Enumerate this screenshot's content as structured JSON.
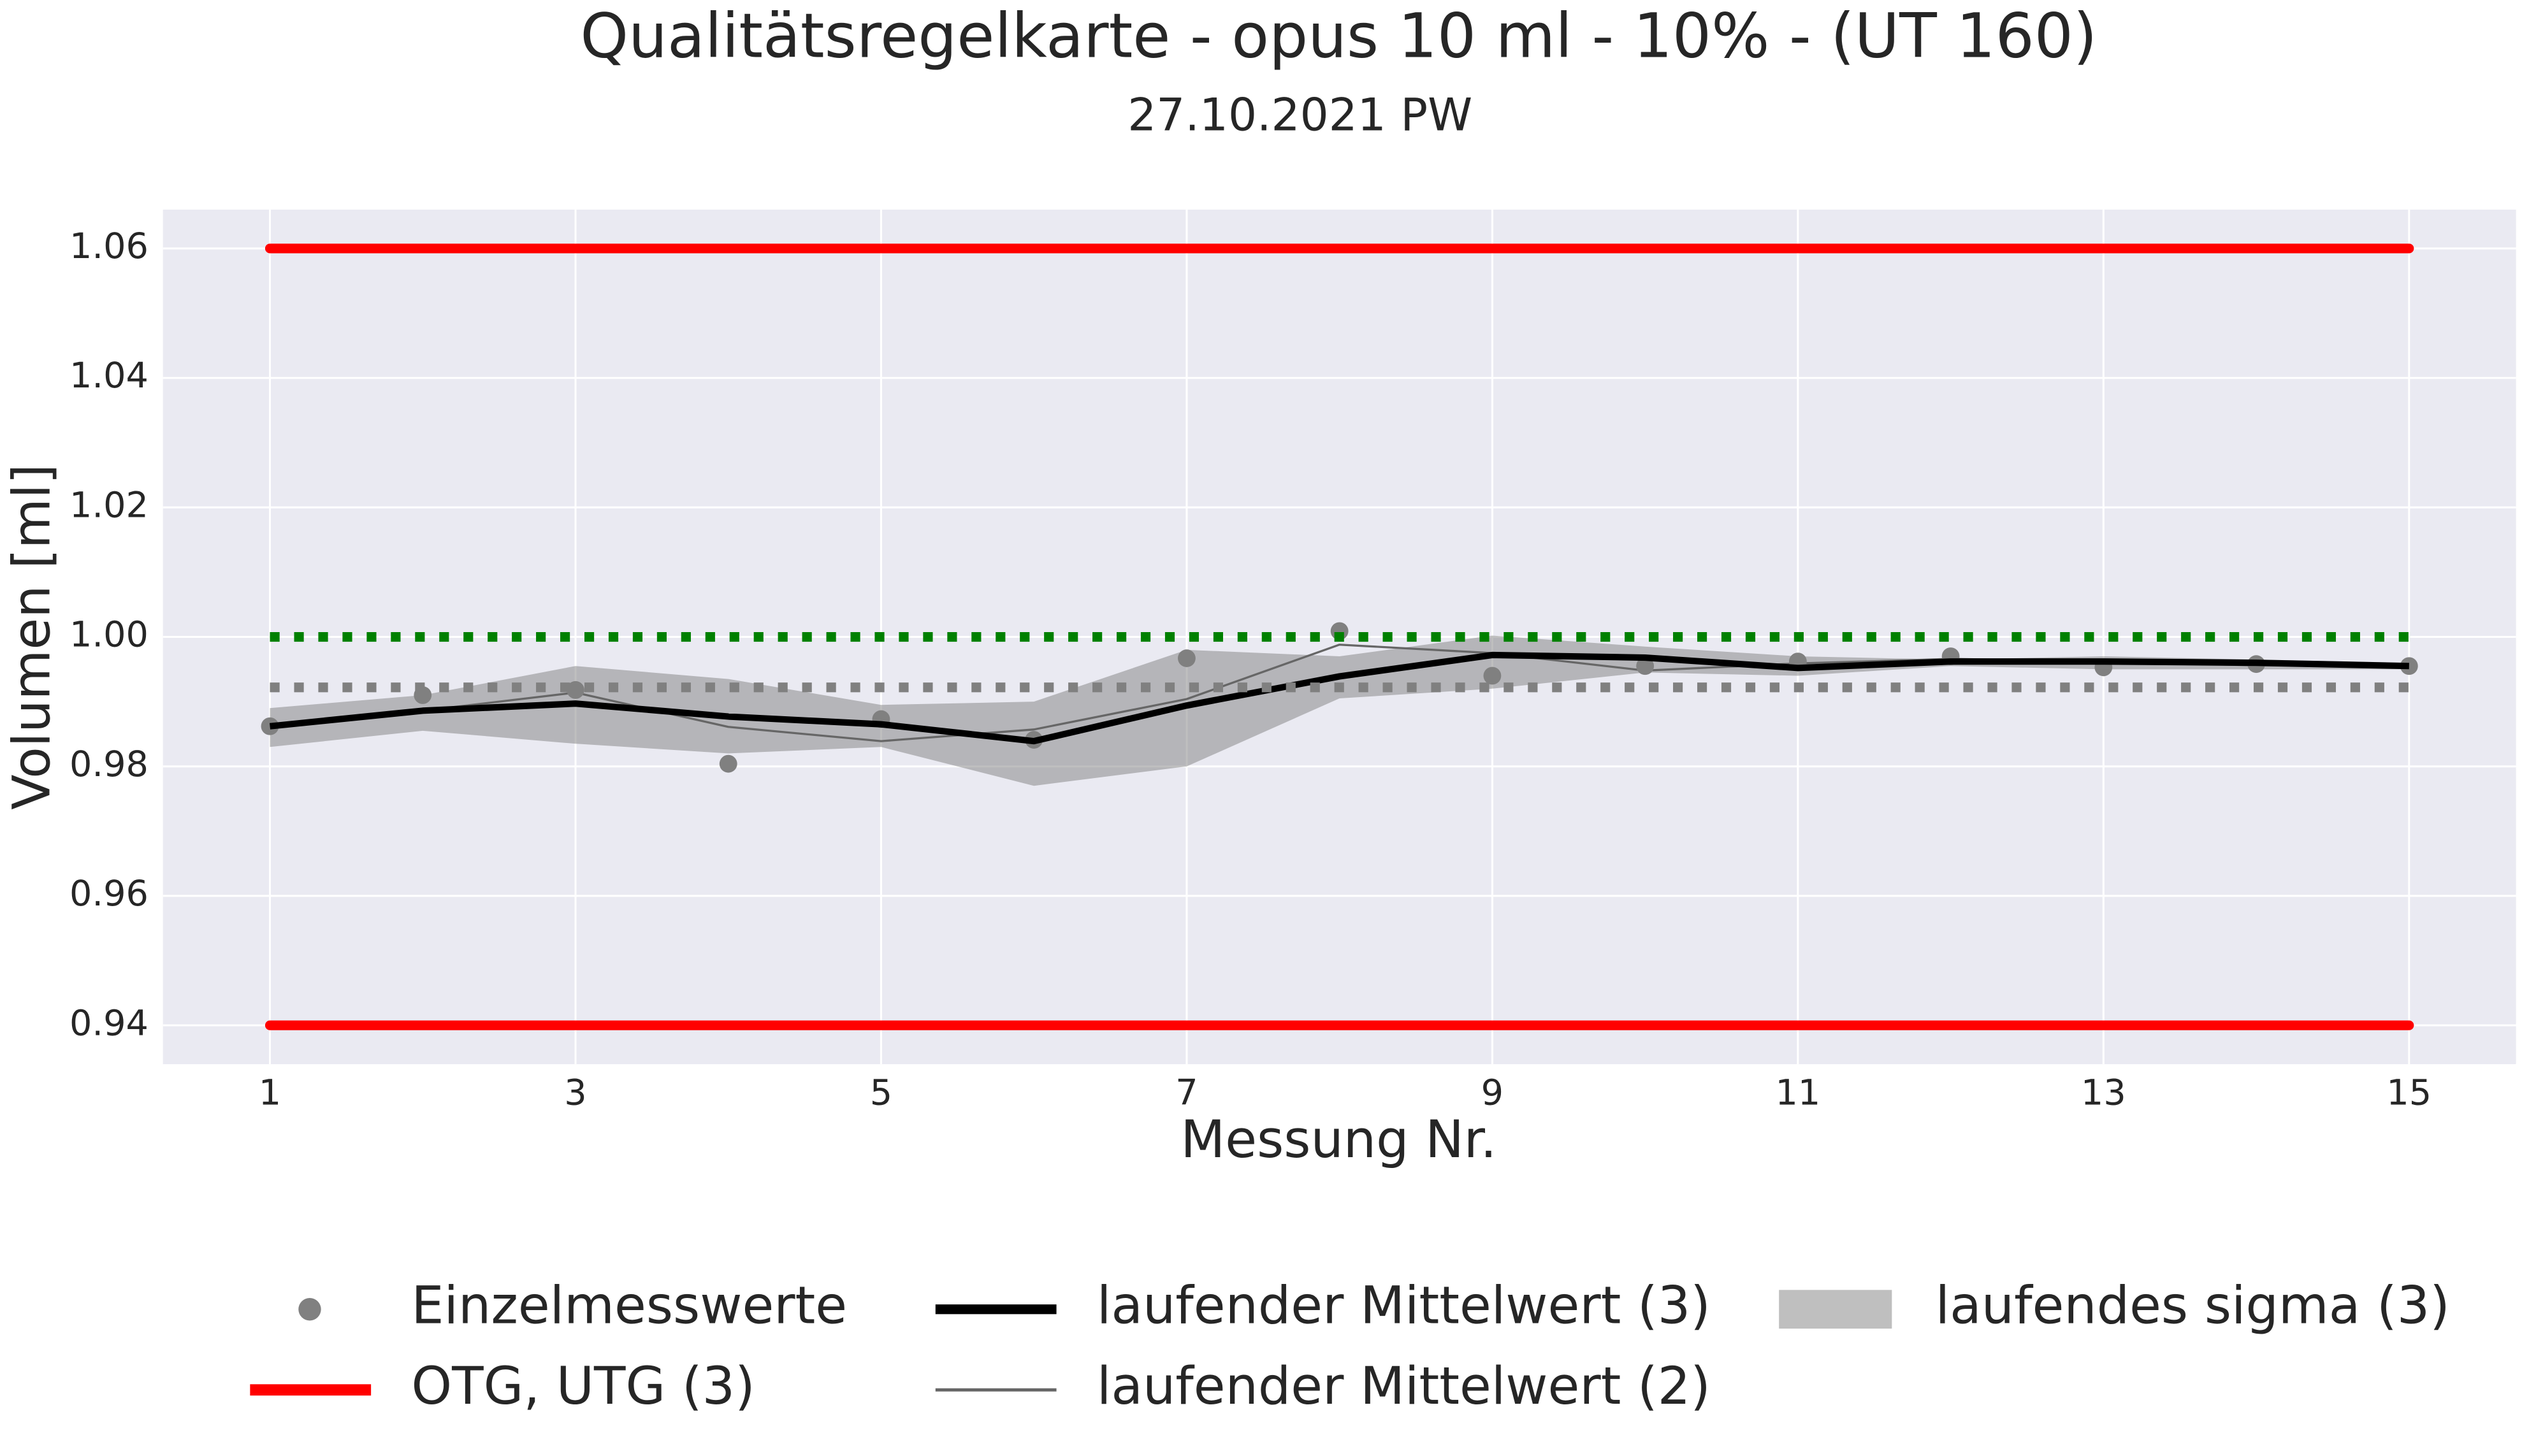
{
  "chart_data": {
    "type": "line",
    "title": "Qualitätsregelkarte - opus 10 ml - 10% - (UT 160)",
    "subtitle": "27.10.2021 PW",
    "xlabel": "Messung Nr.",
    "ylabel": "Volumen [ml]",
    "x": [
      1,
      2,
      3,
      4,
      5,
      6,
      7,
      8,
      9,
      10,
      11,
      12,
      13,
      14,
      15
    ],
    "xlim": [
      0.3,
      15.7
    ],
    "xticks": [
      1,
      3,
      5,
      7,
      9,
      11,
      13,
      15
    ],
    "ylim": [
      0.934,
      1.066
    ],
    "yticks": [
      {
        "value": 0.94,
        "label": "0.94"
      },
      {
        "value": 0.96,
        "label": "0.96"
      },
      {
        "value": 0.98,
        "label": "0.98"
      },
      {
        "value": 1.0,
        "label": "1.00"
      },
      {
        "value": 1.02,
        "label": "1.02"
      },
      {
        "value": 1.04,
        "label": "1.04"
      },
      {
        "value": 1.06,
        "label": "1.06"
      }
    ],
    "grid": true,
    "legend": "bottom",
    "series": [
      {
        "name": "Einzelmesswerte",
        "kind": "points",
        "color": "#808080",
        "values": [
          0.9862,
          0.991,
          0.9918,
          0.9804,
          0.9873,
          0.9841,
          0.9967,
          1.0009,
          0.994,
          0.9955,
          0.9962,
          0.997,
          0.9953,
          0.9958,
          0.9955
        ]
      },
      {
        "name": "laufender Mittelwert (3)",
        "kind": "line",
        "color": "#000000",
        "width": 4,
        "values": [
          0.9862,
          0.9886,
          0.9897,
          0.9877,
          0.9865,
          0.9839,
          0.9894,
          0.9939,
          0.9972,
          0.9968,
          0.9952,
          0.9962,
          0.9962,
          0.996,
          0.9955
        ]
      },
      {
        "name": "laufender Mittelwert (2)",
        "kind": "line",
        "color": "#666666",
        "width": 1.3,
        "values": [
          0.9862,
          0.9886,
          0.9914,
          0.9861,
          0.9839,
          0.9857,
          0.9904,
          0.9988,
          0.9975,
          0.9948,
          0.9959,
          0.9966,
          0.9962,
          0.9956,
          0.9957
        ]
      },
      {
        "name": "laufendes sigma (3)",
        "kind": "band",
        "color": "#808080",
        "alpha": 0.5,
        "lower": [
          0.983,
          0.9855,
          0.9835,
          0.982,
          0.983,
          0.977,
          0.98,
          0.9905,
          0.992,
          0.9945,
          0.994,
          0.9955,
          0.995,
          0.995,
          0.995
        ],
        "upper": [
          0.989,
          0.991,
          0.9955,
          0.9935,
          0.9895,
          0.99,
          0.998,
          0.997,
          1.0002,
          0.9985,
          0.997,
          0.9965,
          0.997,
          0.9965,
          0.996
        ]
      }
    ],
    "limits": {
      "name": "OTG, UTG (3)",
      "color": "#ff0000",
      "values": [
        1.06,
        0.94
      ]
    },
    "hlines": [
      {
        "value": 1.0,
        "color": "#008000"
      },
      {
        "value": 0.9922,
        "color": "#808080"
      }
    ]
  }
}
